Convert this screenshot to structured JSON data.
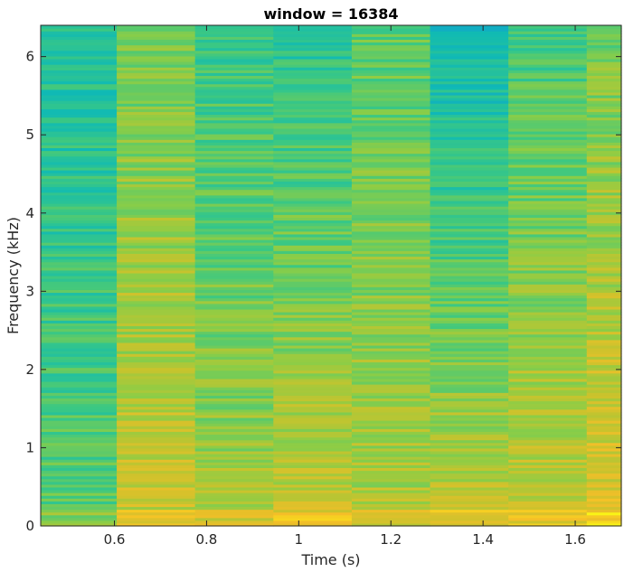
{
  "chart_data": {
    "type": "heatmap",
    "title": "window = 16384",
    "xlabel": "Time (s)",
    "ylabel": "Frequency (kHz)",
    "xlim": [
      0.44,
      1.7
    ],
    "ylim": [
      0,
      6.4
    ],
    "x_ticks": [
      0.6,
      0.8,
      1.0,
      1.2,
      1.4,
      1.6
    ],
    "x_tick_labels": [
      "0.6",
      "0.8",
      "1",
      "1.2",
      "1.4",
      "1.6"
    ],
    "y_ticks": [
      0,
      1,
      2,
      3,
      4,
      5,
      6
    ],
    "y_tick_labels": [
      "0",
      "1",
      "2",
      "3",
      "4",
      "5",
      "6"
    ],
    "colormap": "parula",
    "time_segments": [
      {
        "t_start": 0.44,
        "t_end": 0.605,
        "low_level": 0.62,
        "high_level": 0.5
      },
      {
        "t_start": 0.605,
        "t_end": 0.775,
        "low_level": 0.8,
        "high_level": 0.66
      },
      {
        "t_start": 0.775,
        "t_end": 0.945,
        "low_level": 0.74,
        "high_level": 0.56
      },
      {
        "t_start": 0.945,
        "t_end": 1.115,
        "low_level": 0.8,
        "high_level": 0.52
      },
      {
        "t_start": 1.115,
        "t_end": 1.285,
        "low_level": 0.76,
        "high_level": 0.62
      },
      {
        "t_start": 1.285,
        "t_end": 1.455,
        "low_level": 0.8,
        "high_level": 0.44
      },
      {
        "t_start": 1.455,
        "t_end": 1.625,
        "low_level": 0.8,
        "high_level": 0.58
      },
      {
        "t_start": 1.625,
        "t_end": 1.7,
        "low_level": 0.84,
        "high_level": 0.66
      }
    ]
  }
}
